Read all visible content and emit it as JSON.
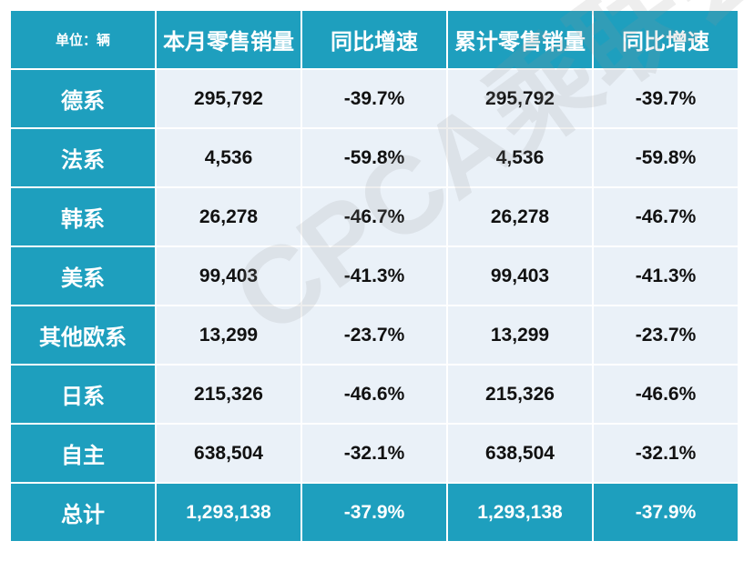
{
  "table": {
    "header": {
      "unit_label": "单位：辆",
      "columns": [
        "本月零售销量",
        "同比增速",
        "累计零售销量",
        "同比增速"
      ]
    },
    "rows": [
      {
        "label": "德系",
        "cells": [
          "295,792",
          "-39.7%",
          "295,792",
          "-39.7%"
        ]
      },
      {
        "label": "法系",
        "cells": [
          "4,536",
          "-59.8%",
          "4,536",
          "-59.8%"
        ]
      },
      {
        "label": "韩系",
        "cells": [
          "26,278",
          "-46.7%",
          "26,278",
          "-46.7%"
        ]
      },
      {
        "label": "美系",
        "cells": [
          "99,403",
          "-41.3%",
          "99,403",
          "-41.3%"
        ]
      },
      {
        "label": "其他欧系",
        "cells": [
          "13,299",
          "-23.7%",
          "13,299",
          "-23.7%"
        ]
      },
      {
        "label": "日系",
        "cells": [
          "215,326",
          "-46.6%",
          "215,326",
          "-46.6%"
        ]
      },
      {
        "label": "自主",
        "cells": [
          "638,504",
          "-32.1%",
          "638,504",
          "-32.1%"
        ]
      }
    ],
    "total": {
      "label": "总计",
      "cells": [
        "1,293,138",
        "-37.9%",
        "1,293,138",
        "-37.9%"
      ]
    }
  },
  "watermark": "CPCA乘联会",
  "colors": {
    "header_bg": "#1e9fbe",
    "body_bg": "#eaf1f8",
    "header_text": "#ffffff"
  }
}
